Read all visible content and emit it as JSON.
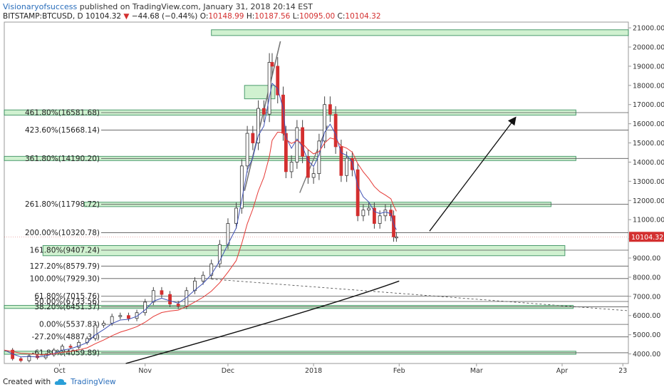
{
  "header": {
    "author": "Visionaryofsuccess",
    "published_text": "published on TradingView.com, January 31, 2018 20:14 EST",
    "symbol": "BITSTAMP:BTCUSD, D",
    "last": "10104.32",
    "change": "−44.68 (−0.44%)",
    "o_label": "O:",
    "o_value": "10148.99",
    "h_label": "H:",
    "h_value": "10187.56",
    "l_label": "L:",
    "l_value": "10095.00",
    "c_label": "C:",
    "c_value": "10104.32"
  },
  "footer": {
    "created_with": "Created with",
    "brand": "TradingView"
  },
  "colors": {
    "up": "#ffffff",
    "down": "#d32f2f",
    "wick": "#444444",
    "zone_fill": "#c8efc8",
    "zone_stroke": "#2e8b57",
    "fib_line": "#555555",
    "ema_red": "#e53935",
    "ema_blue": "#3f51b5",
    "price_tag": "#d32f2f"
  },
  "chart_data": {
    "type": "candlestick",
    "ylim": [
      3500,
      21300
    ],
    "y_ticks": [
      "4000.00",
      "5000.00",
      "6000.00",
      "7000.00",
      "8000.00",
      "9000.00",
      "10000.00",
      "11000.00",
      "12000.00",
      "13000.00",
      "14000.00",
      "15000.00",
      "16000.00",
      "17000.00",
      "18000.00",
      "19000.00",
      "20000.00",
      "21000.00"
    ],
    "x_ticks": [
      {
        "label": "Oct",
        "date": "2017-10-01"
      },
      {
        "label": "Nov",
        "date": "2017-11-01"
      },
      {
        "label": "Dec",
        "date": "2017-12-01"
      },
      {
        "label": "2018",
        "date": "2018-01-01"
      },
      {
        "label": "Feb",
        "date": "2018-02-01"
      },
      {
        "label": "Mar",
        "date": "2018-03-01"
      },
      {
        "label": "Apr",
        "date": "2018-04-01"
      },
      {
        "label": "23",
        "date": "2018-04-23"
      }
    ],
    "x_range": [
      "2017-09-11",
      "2018-04-25"
    ],
    "last_price_label": "10104.32",
    "last_price": 10104.32,
    "fib_levels": [
      {
        "label": "461.80%(16581.68)",
        "value": 16581.68
      },
      {
        "label": "423.60%(15668.14)",
        "value": 15668.14
      },
      {
        "label": "361.80%(14190.20)",
        "value": 14190.2
      },
      {
        "label": "261.80%(11798.72)",
        "value": 11798.72
      },
      {
        "label": "200.00%(10320.78)",
        "value": 10320.78
      },
      {
        "label": "161.80%(9407.24)",
        "value": 9407.24
      },
      {
        "label": "127.20%(8579.79)",
        "value": 8579.79
      },
      {
        "label": "100.00%(7929.30)",
        "value": 7929.3
      },
      {
        "label": "61.80%(7015.76)",
        "value": 7015.76
      },
      {
        "label": "50.00%(6733.56)",
        "value": 6733.56
      },
      {
        "label": "38.20%(6451.37)",
        "value": 6451.37
      },
      {
        "label": "0.00%(5537.83)",
        "value": 5537.83
      },
      {
        "label": "-27.20%(4887.34)",
        "value": 4887.34
      },
      {
        "label": "-61.80%(4059.89)",
        "value": 4059.89
      }
    ],
    "zones": [
      {
        "from": "2017-11-25",
        "to": "2018-04-25",
        "low": 20600,
        "high": 20900
      },
      {
        "from": "2017-12-07",
        "to": "2017-12-18",
        "low": 17300,
        "high": 18000
      },
      {
        "from": "2017-09-11",
        "to": "2018-04-06",
        "low": 16450,
        "high": 16720
      },
      {
        "from": "2017-09-11",
        "to": "2018-04-06",
        "low": 14080,
        "high": 14300
      },
      {
        "from": "2017-10-10",
        "to": "2018-03-28",
        "low": 11680,
        "high": 11910
      },
      {
        "from": "2017-09-25",
        "to": "2018-04-02",
        "low": 9120,
        "high": 9650
      },
      {
        "from": "2017-09-11",
        "to": "2018-04-05",
        "low": 6370,
        "high": 6530
      },
      {
        "from": "2017-09-11",
        "to": "2018-04-06",
        "low": 3980,
        "high": 4140
      }
    ],
    "closes": [
      {
        "date": "2017-09-11",
        "close": 4200
      },
      {
        "date": "2017-09-14",
        "close": 3750
      },
      {
        "date": "2017-09-17",
        "close": 3650
      },
      {
        "date": "2017-09-20",
        "close": 3900
      },
      {
        "date": "2017-09-23",
        "close": 3800
      },
      {
        "date": "2017-09-26",
        "close": 3950
      },
      {
        "date": "2017-09-29",
        "close": 4200
      },
      {
        "date": "2017-10-02",
        "close": 4400
      },
      {
        "date": "2017-10-05",
        "close": 4350
      },
      {
        "date": "2017-10-08",
        "close": 4600
      },
      {
        "date": "2017-10-11",
        "close": 4800
      },
      {
        "date": "2017-10-14",
        "close": 5500
      },
      {
        "date": "2017-10-17",
        "close": 5600
      },
      {
        "date": "2017-10-20",
        "close": 5950
      },
      {
        "date": "2017-10-23",
        "close": 6000
      },
      {
        "date": "2017-10-26",
        "close": 5850
      },
      {
        "date": "2017-10-29",
        "close": 6150
      },
      {
        "date": "2017-11-01",
        "close": 6700
      },
      {
        "date": "2017-11-04",
        "close": 7300
      },
      {
        "date": "2017-11-07",
        "close": 7100
      },
      {
        "date": "2017-11-10",
        "close": 6600
      },
      {
        "date": "2017-11-13",
        "close": 6500
      },
      {
        "date": "2017-11-16",
        "close": 7300
      },
      {
        "date": "2017-11-19",
        "close": 7800
      },
      {
        "date": "2017-11-22",
        "close": 8100
      },
      {
        "date": "2017-11-25",
        "close": 8700
      },
      {
        "date": "2017-11-28",
        "close": 9700
      },
      {
        "date": "2017-12-01",
        "close": 10800
      },
      {
        "date": "2017-12-04",
        "close": 11600
      },
      {
        "date": "2017-12-06",
        "close": 13800
      },
      {
        "date": "2017-12-08",
        "close": 15500
      },
      {
        "date": "2017-12-10",
        "close": 15000
      },
      {
        "date": "2017-12-12",
        "close": 16800
      },
      {
        "date": "2017-12-14",
        "close": 16500
      },
      {
        "date": "2017-12-16",
        "close": 19200
      },
      {
        "date": "2017-12-17",
        "close": 19000
      },
      {
        "date": "2017-12-19",
        "close": 17500
      },
      {
        "date": "2017-12-21",
        "close": 15500
      },
      {
        "date": "2017-12-22",
        "close": 13500
      },
      {
        "date": "2017-12-24",
        "close": 14000
      },
      {
        "date": "2017-12-26",
        "close": 15800
      },
      {
        "date": "2017-12-28",
        "close": 14300
      },
      {
        "date": "2017-12-30",
        "close": 13200
      },
      {
        "date": "2018-01-01",
        "close": 13400
      },
      {
        "date": "2018-01-03",
        "close": 15100
      },
      {
        "date": "2018-01-05",
        "close": 17000
      },
      {
        "date": "2018-01-07",
        "close": 16500
      },
      {
        "date": "2018-01-09",
        "close": 14800
      },
      {
        "date": "2018-01-11",
        "close": 13300
      },
      {
        "date": "2018-01-13",
        "close": 14200
      },
      {
        "date": "2018-01-15",
        "close": 13600
      },
      {
        "date": "2018-01-17",
        "close": 11200
      },
      {
        "date": "2018-01-19",
        "close": 11500
      },
      {
        "date": "2018-01-21",
        "close": 11600
      },
      {
        "date": "2018-01-23",
        "close": 10800
      },
      {
        "date": "2018-01-25",
        "close": 11200
      },
      {
        "date": "2018-01-27",
        "close": 11500
      },
      {
        "date": "2018-01-29",
        "close": 11200
      },
      {
        "date": "2018-01-30",
        "close": 10100
      },
      {
        "date": "2018-01-31",
        "close": 10104
      }
    ],
    "annotation_arrow": {
      "from": {
        "date": "2018-02-12",
        "value": 10400
      },
      "to": {
        "date": "2018-03-15",
        "value": 16300
      }
    }
  }
}
